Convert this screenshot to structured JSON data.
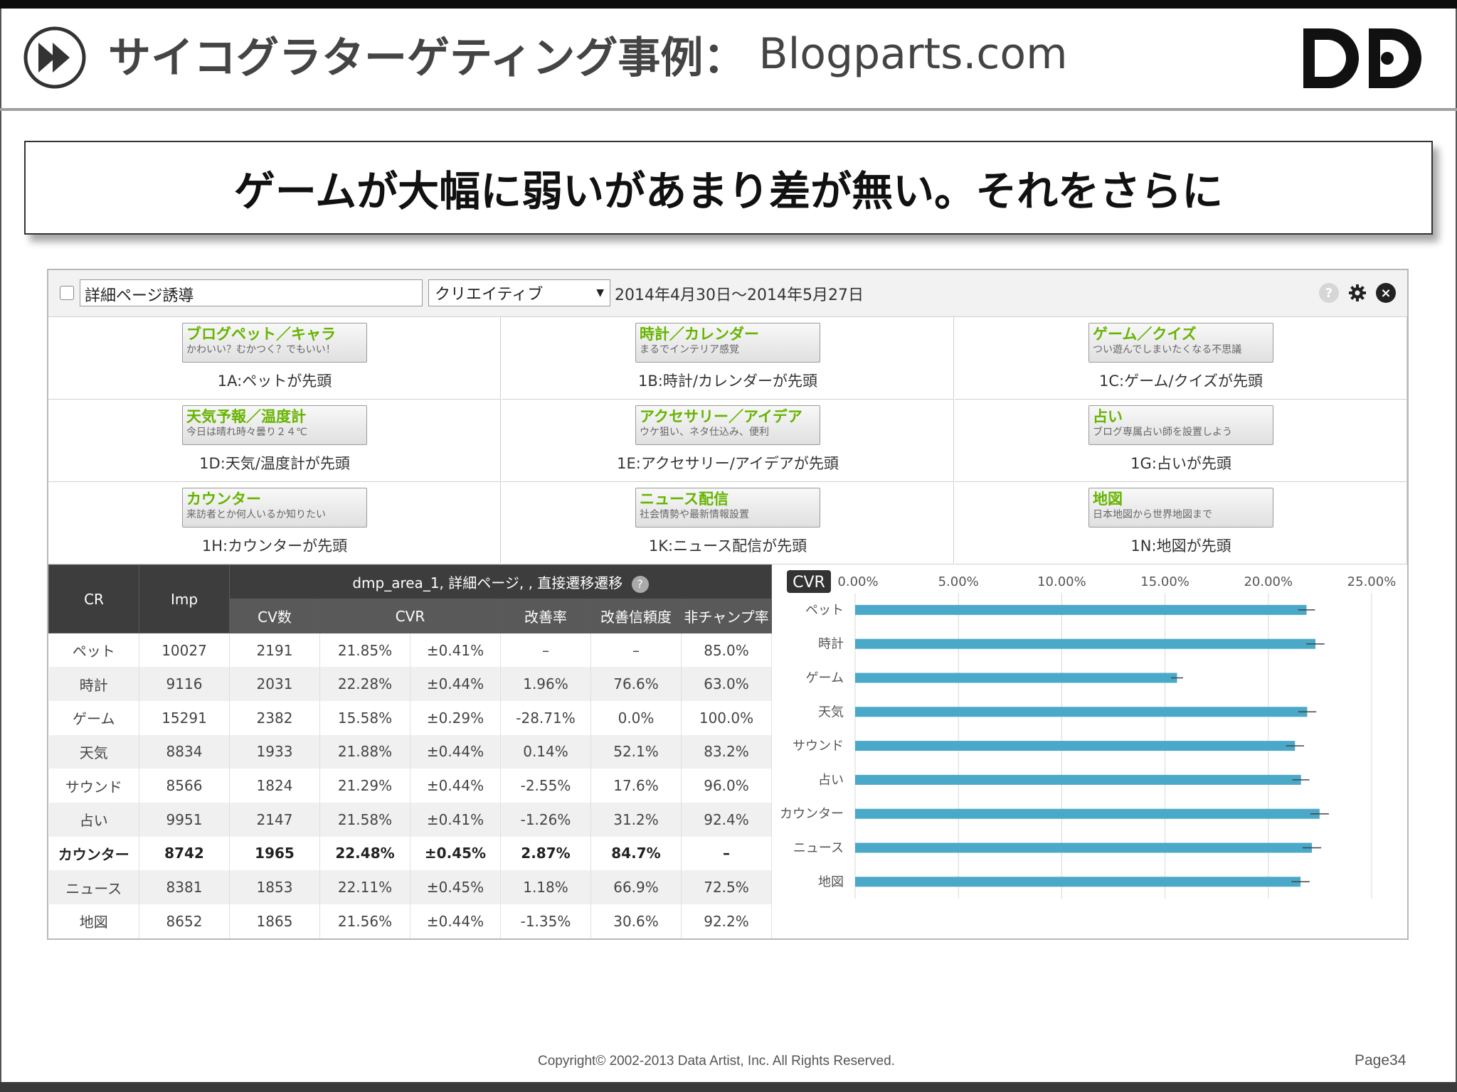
{
  "slide": {
    "title_jp": "サイコグラターゲティング事例：",
    "title_en": "Blogparts.com",
    "headline": "ゲームが大幅に弱いがあまり差が無い。それをさらに",
    "copyright": "Copyright© 2002-2013 Data Artist, Inc.   All Rights Reserved.",
    "page": "Page34"
  },
  "toolbar": {
    "segment_value": "詳細ページ誘導",
    "select_value": "クリエイティブ",
    "date_range": "2014年4月30日～2014年5月27日"
  },
  "creatives": [
    {
      "title": "ブログペット／キャラ",
      "sub": "かわいい？むかつく？でもいい！",
      "caption": "1A:ペットが先頭"
    },
    {
      "title": "時計／カレンダー",
      "sub": "まるでインテリア感覚",
      "caption": "1B:時計/カレンダーが先頭"
    },
    {
      "title": "ゲーム／クイズ",
      "sub": "つい遊んでしまいたくなる不思議",
      "caption": "1C:ゲーム/クイズが先頭"
    },
    {
      "title": "天気予報／温度計",
      "sub": "今日は晴れ時々曇り２４℃",
      "caption": "1D:天気/温度計が先頭"
    },
    {
      "title": "アクセサリー／アイデア",
      "sub": "ウケ狙い、ネタ仕込み、便利",
      "caption": "1E:アクセサリー/アイデアが先頭"
    },
    {
      "title": "占い",
      "sub": "ブログ専属占い師を設置しよう",
      "caption": "1G:占いが先頭"
    },
    {
      "title": "カウンター",
      "sub": "来訪者とか何人いるか知りたい",
      "caption": "1H:カウンターが先頭"
    },
    {
      "title": "ニュース配信",
      "sub": "社会情勢や最新情報設置",
      "caption": "1K:ニュース配信が先頭"
    },
    {
      "title": "地図",
      "sub": "日本地図から世界地図まで",
      "caption": "1N:地図が先頭"
    }
  ],
  "table": {
    "headers": {
      "cr": "CR",
      "imp": "Imp",
      "group": "dmp_area_1, 詳細ページ, , 直接遷移遷移",
      "cv": "CV数",
      "cvr": "CVR",
      "lift": "改善率",
      "confidence": "改善信頼度",
      "nonchamp": "非チャンプ率"
    },
    "rows": [
      {
        "cr": "ペット",
        "imp": "10027",
        "cv": "2191",
        "cvr": "21.85%",
        "err": "±0.41%",
        "lift": "–",
        "conf": "–",
        "nonchamp": "85.0%"
      },
      {
        "cr": "時計",
        "imp": "9116",
        "cv": "2031",
        "cvr": "22.28%",
        "err": "±0.44%",
        "lift": "1.96%",
        "conf": "76.6%",
        "nonchamp": "63.0%"
      },
      {
        "cr": "ゲーム",
        "imp": "15291",
        "cv": "2382",
        "cvr": "15.58%",
        "err": "±0.29%",
        "lift": "-28.71%",
        "conf": "0.0%",
        "nonchamp": "100.0%"
      },
      {
        "cr": "天気",
        "imp": "8834",
        "cv": "1933",
        "cvr": "21.88%",
        "err": "±0.44%",
        "lift": "0.14%",
        "conf": "52.1%",
        "nonchamp": "83.2%"
      },
      {
        "cr": "サウンド",
        "imp": "8566",
        "cv": "1824",
        "cvr": "21.29%",
        "err": "±0.44%",
        "lift": "-2.55%",
        "conf": "17.6%",
        "nonchamp": "96.0%"
      },
      {
        "cr": "占い",
        "imp": "9951",
        "cv": "2147",
        "cvr": "21.58%",
        "err": "±0.41%",
        "lift": "-1.26%",
        "conf": "31.2%",
        "nonchamp": "92.4%"
      },
      {
        "cr": "カウンター",
        "imp": "8742",
        "cv": "1965",
        "cvr": "22.48%",
        "err": "±0.45%",
        "lift": "2.87%",
        "conf": "84.7%",
        "nonchamp": "–",
        "bold": true
      },
      {
        "cr": "ニュース",
        "imp": "8381",
        "cv": "1853",
        "cvr": "22.11%",
        "err": "±0.45%",
        "lift": "1.18%",
        "conf": "66.9%",
        "nonchamp": "72.5%"
      },
      {
        "cr": "地図",
        "imp": "8652",
        "cv": "1865",
        "cvr": "21.56%",
        "err": "±0.44%",
        "lift": "-1.35%",
        "conf": "30.6%",
        "nonchamp": "92.2%"
      }
    ]
  },
  "chart_data": {
    "type": "bar",
    "orientation": "horizontal",
    "title": "CVR",
    "categories": [
      "ペット",
      "時計",
      "ゲーム",
      "天気",
      "サウンド",
      "占い",
      "カウンター",
      "ニュース",
      "地図"
    ],
    "values": [
      21.85,
      22.28,
      15.58,
      21.88,
      21.29,
      21.58,
      22.48,
      22.11,
      21.56
    ],
    "errors": [
      0.41,
      0.44,
      0.29,
      0.44,
      0.44,
      0.41,
      0.45,
      0.45,
      0.44
    ],
    "xticks": [
      "0.00%",
      "5.00%",
      "10.00%",
      "15.00%",
      "20.00%",
      "25.00%"
    ],
    "xlim": [
      0,
      25
    ],
    "grid": true,
    "bar_color": "#4aa8c8"
  },
  "colors": {
    "accent_green": "#66b400",
    "header_dark": "#3d3d3d",
    "bar": "#4aa8c8"
  }
}
